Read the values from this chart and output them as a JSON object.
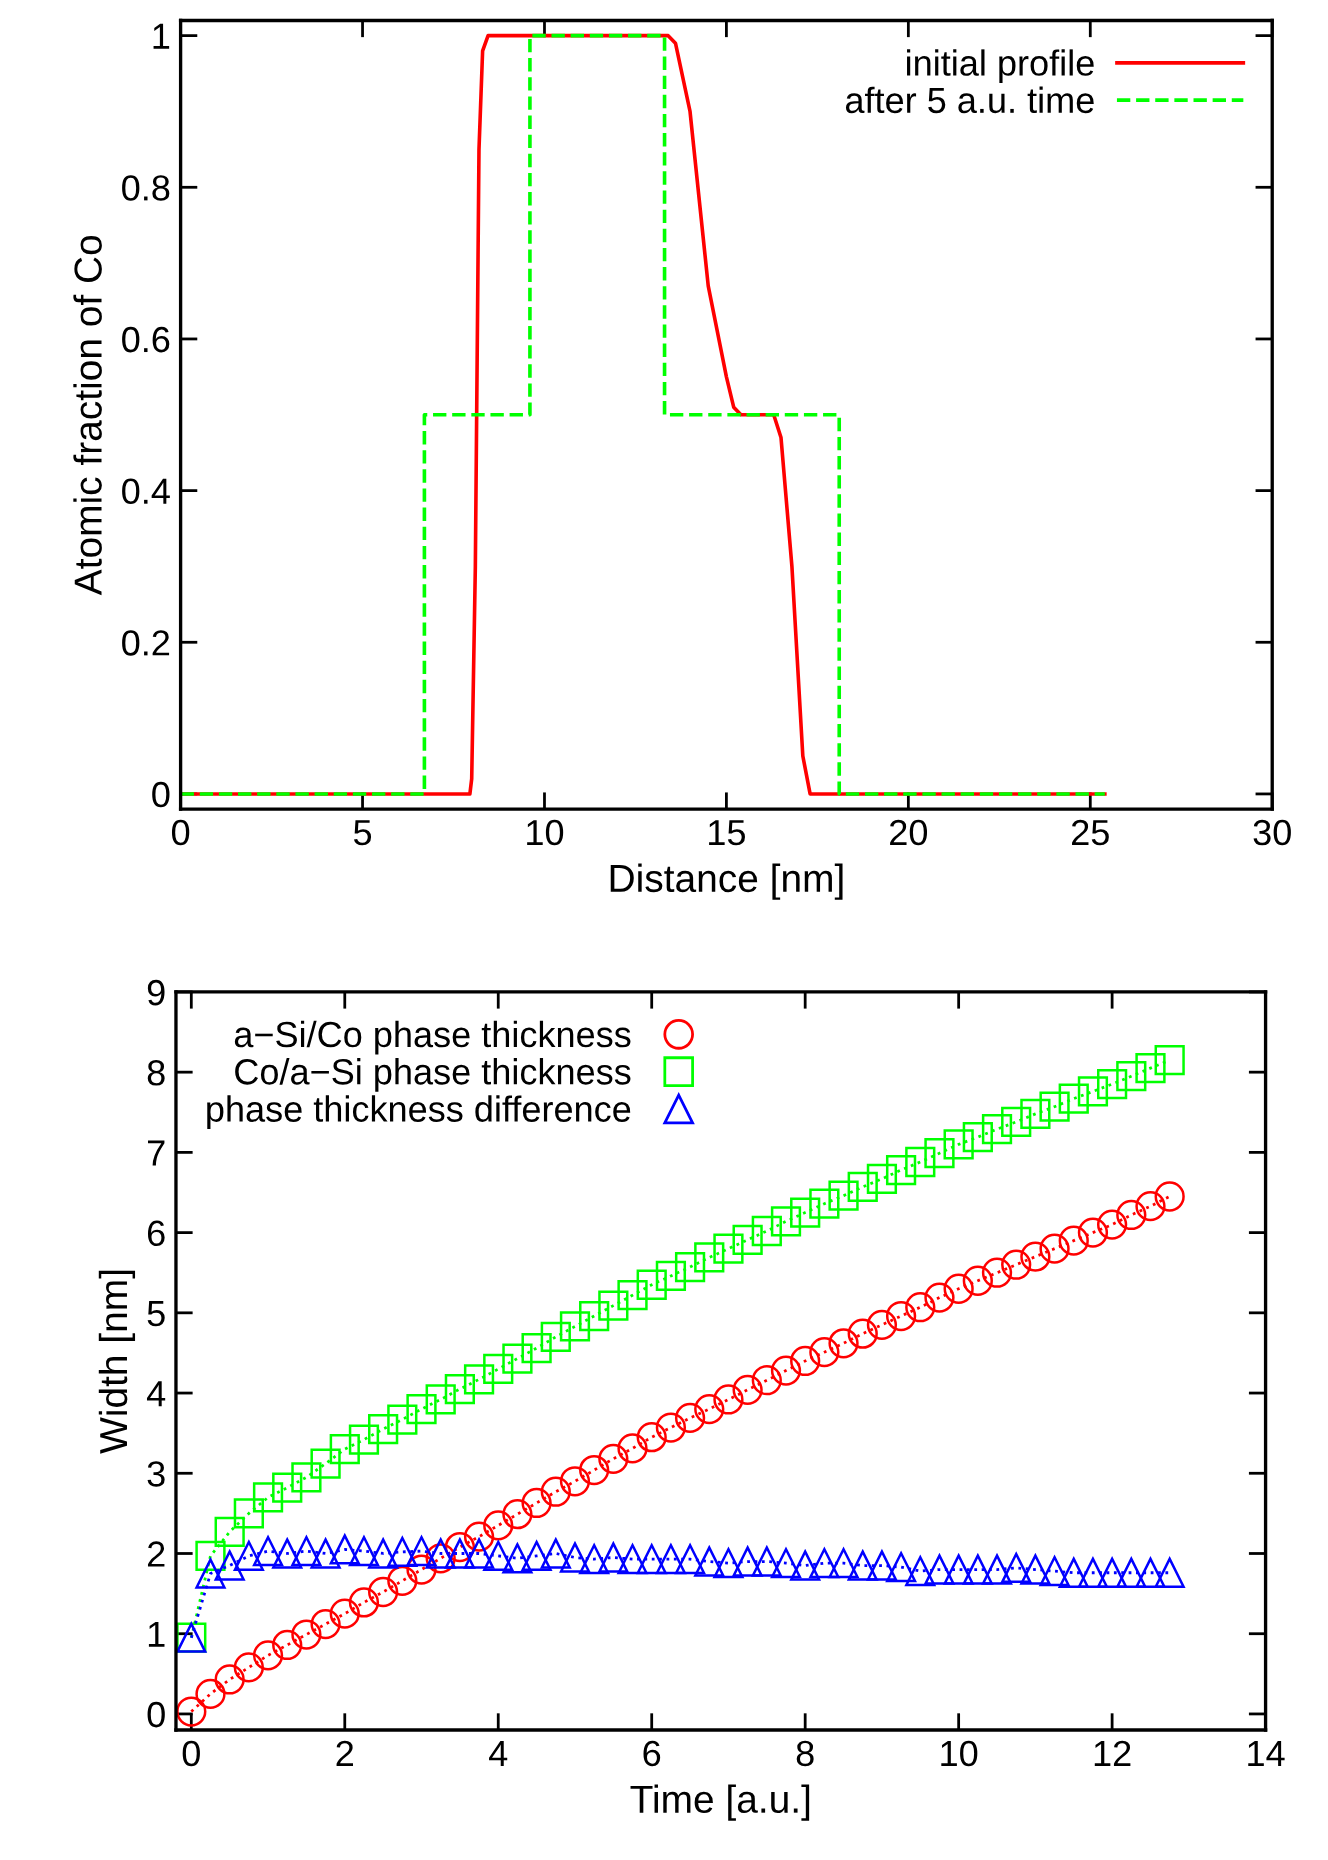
{
  "chart_data": [
    {
      "type": "line",
      "xlabel": "Distance [nm]",
      "ylabel": "Atomic fraction of Co",
      "xlim": [
        0,
        30
      ],
      "ylim": [
        -0.02,
        1.02
      ],
      "xticks": [
        0,
        5,
        10,
        15,
        20,
        25,
        30
      ],
      "yticks": [
        0,
        0.2,
        0.4,
        0.6,
        0.8,
        1
      ],
      "legend": "top right",
      "marker": "none",
      "series": [
        {
          "name": "initial profile",
          "color": "#ff0000",
          "line_style": "solid",
          "x": [
            0,
            7.95,
            8.0,
            8.1,
            8.2,
            8.3,
            8.45,
            13.4,
            13.6,
            14.0,
            14.5,
            15.0,
            15.2,
            15.4,
            16.3,
            16.5,
            16.8,
            17.1,
            17.3,
            25.4
          ],
          "values": [
            0,
            0,
            0.02,
            0.3,
            0.85,
            0.98,
            1,
            1,
            0.99,
            0.9,
            0.67,
            0.55,
            0.51,
            0.5,
            0.5,
            0.47,
            0.3,
            0.05,
            0,
            0
          ]
        },
        {
          "name": "after 5 a.u. time",
          "color": "#00ff00",
          "line_style": "dashed",
          "x": [
            0,
            6.7,
            6.7,
            9.6,
            9.6,
            13.3,
            13.3,
            18.1,
            18.1,
            25.4
          ],
          "values": [
            0,
            0,
            0.5,
            0.5,
            1,
            1,
            0.5,
            0.5,
            0,
            0
          ]
        }
      ]
    },
    {
      "type": "line",
      "xlabel": "Time [a.u.]",
      "ylabel": "Width [nm]",
      "xlim": [
        -0.2,
        14
      ],
      "ylim": [
        -0.2,
        9
      ],
      "xticks": [
        0,
        2,
        4,
        6,
        8,
        10,
        12,
        14
      ],
      "yticks": [
        0,
        1,
        2,
        3,
        4,
        5,
        6,
        7,
        8,
        9
      ],
      "legend": "top left",
      "line_style": "dotted",
      "x": [
        0,
        0.25,
        0.5,
        0.75,
        1,
        1.25,
        1.5,
        1.75,
        2,
        2.25,
        2.5,
        2.75,
        3,
        3.25,
        3.5,
        3.75,
        4,
        4.25,
        4.5,
        4.75,
        5,
        5.25,
        5.5,
        5.75,
        6,
        6.25,
        6.5,
        6.75,
        7,
        7.25,
        7.5,
        7.75,
        8,
        8.25,
        8.5,
        8.75,
        9,
        9.25,
        9.5,
        9.75,
        10,
        10.25,
        10.5,
        10.75,
        11,
        11.25,
        11.5,
        11.75,
        12,
        12.25,
        12.5,
        12.75
      ],
      "series": [
        {
          "name": "a−Si/Co phase thickness",
          "color": "#ff0000",
          "marker": "circle",
          "values": [
            0.03,
            0.25,
            0.43,
            0.58,
            0.73,
            0.86,
            0.99,
            1.12,
            1.25,
            1.39,
            1.52,
            1.66,
            1.8,
            1.94,
            2.08,
            2.21,
            2.35,
            2.49,
            2.63,
            2.77,
            2.9,
            3.04,
            3.18,
            3.31,
            3.45,
            3.57,
            3.69,
            3.8,
            3.92,
            4.04,
            4.16,
            4.28,
            4.4,
            4.51,
            4.62,
            4.74,
            4.85,
            4.96,
            5.07,
            5.19,
            5.3,
            5.4,
            5.5,
            5.6,
            5.7,
            5.8,
            5.9,
            6.0,
            6.1,
            6.22,
            6.33,
            6.45
          ]
        },
        {
          "name": "Co/a−Si phase thickness",
          "color": "#00ff00",
          "marker": "square",
          "values": [
            0.95,
            1.97,
            2.27,
            2.5,
            2.7,
            2.82,
            2.95,
            3.12,
            3.3,
            3.42,
            3.55,
            3.67,
            3.8,
            3.92,
            4.05,
            4.17,
            4.3,
            4.43,
            4.56,
            4.7,
            4.83,
            4.96,
            5.09,
            5.22,
            5.35,
            5.46,
            5.57,
            5.69,
            5.8,
            5.91,
            6.02,
            6.14,
            6.25,
            6.36,
            6.46,
            6.57,
            6.67,
            6.78,
            6.88,
            6.99,
            7.1,
            7.19,
            7.29,
            7.38,
            7.48,
            7.57,
            7.67,
            7.76,
            7.85,
            7.95,
            8.05,
            8.15
          ]
        },
        {
          "name": "phase thickness difference",
          "color": "#0000ff",
          "marker": "triangle",
          "values": [
            0.95,
            1.75,
            1.85,
            1.97,
            2.03,
            2.0,
            2.03,
            2.0,
            2.05,
            2.03,
            2.0,
            2.02,
            2.03,
            2.0,
            2.0,
            2.0,
            1.97,
            1.94,
            1.97,
            2.0,
            1.95,
            1.93,
            1.95,
            1.93,
            1.93,
            1.93,
            1.93,
            1.9,
            1.88,
            1.9,
            1.9,
            1.88,
            1.85,
            1.88,
            1.88,
            1.85,
            1.85,
            1.83,
            1.78,
            1.8,
            1.8,
            1.8,
            1.8,
            1.82,
            1.8,
            1.78,
            1.76,
            1.76,
            1.76,
            1.76,
            1.76,
            1.76
          ]
        }
      ]
    }
  ]
}
